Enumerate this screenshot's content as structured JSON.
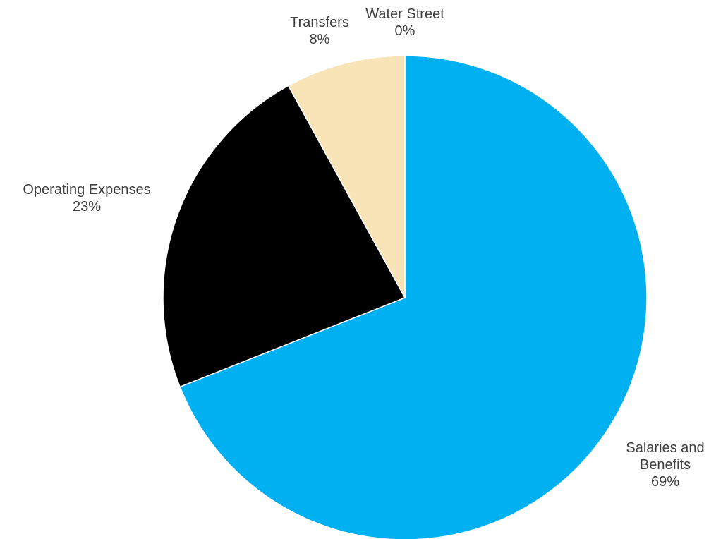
{
  "chart_data": {
    "type": "pie",
    "slices": [
      {
        "label": "Salaries and Benefits",
        "label_lines": [
          "Salaries and",
          "Benefits"
        ],
        "value": 69,
        "percent_label": "69%",
        "color": "#00B0F0"
      },
      {
        "label": "Operating Expenses",
        "label_lines": [
          "Operating Expenses"
        ],
        "value": 23,
        "percent_label": "23%",
        "color": "#000000"
      },
      {
        "label": "Transfers",
        "label_lines": [
          "Transfers"
        ],
        "value": 8,
        "percent_label": "8%",
        "color": "#F9E4B7"
      },
      {
        "label": "Water Street",
        "label_lines": [
          "Water Street"
        ],
        "value": 0,
        "percent_label": "0%",
        "color": "#A6A6A6"
      }
    ],
    "start_angle": "12 o'clock",
    "direction": "clockwise",
    "legend": "none",
    "data_labels": "category name and percentage"
  }
}
